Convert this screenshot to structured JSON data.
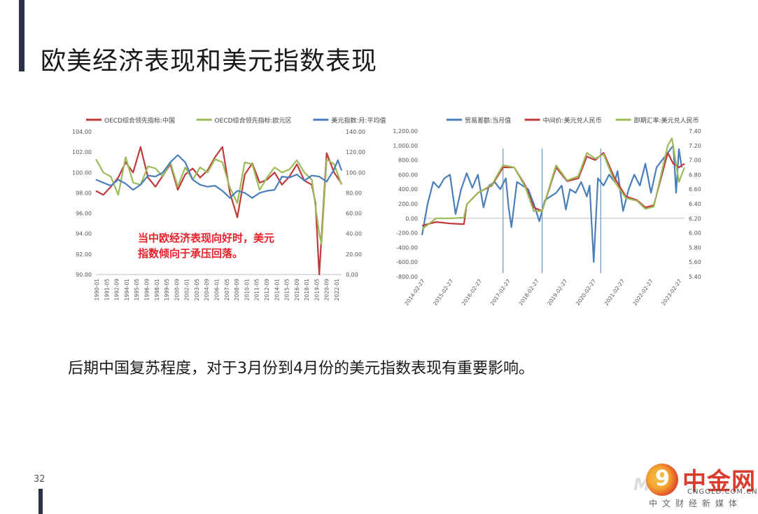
{
  "slide": {
    "title": "欧美经济表现和美元指数表现",
    "conclusion": "后期中国复苏程度，对于3月份到4月份的美元指数表现有重要影响。",
    "page_number": "32",
    "accent_color": "#2b3147"
  },
  "logo": {
    "name": "中金网",
    "url": "CNGOLD.COM.CN",
    "tagline": "中文财经新媒体",
    "faint_text": "Me",
    "circle_glyph": "9",
    "colors": {
      "red": "#d93b2c",
      "orange": "#f3a52f"
    }
  },
  "chart_data": [
    {
      "type": "line",
      "legend": [
        "OECD综合领先指标:中国",
        "OECD综合领先指标:欧元区",
        "美元指数:月:平均值"
      ],
      "legend_position": "top",
      "colors": [
        "#c0393b",
        "#9bbb59",
        "#4a7ebb"
      ],
      "y_left": {
        "ticks": [
          "104.00",
          "102.00",
          "100.00",
          "98.00",
          "96.00",
          "94.00",
          "92.00",
          "90.00"
        ],
        "range": [
          90,
          104
        ]
      },
      "y_right": {
        "ticks": [
          "140.00",
          "120.00",
          "100.00",
          "80.00",
          "60.00",
          "40.00",
          "20.00",
          "0.00"
        ],
        "range": [
          0,
          140
        ]
      },
      "x_ticks": [
        "1990-01",
        "1991-05",
        "1992-09",
        "1994-01",
        "1995-05",
        "1996-09",
        "1998-01",
        "1999-05",
        "2000-09",
        "2002-01",
        "2003-05",
        "2004-09",
        "2006-01",
        "2007-05",
        "2008-09",
        "2010-01",
        "2011-05",
        "2012-09",
        "2014-01",
        "2015-05",
        "2016-09",
        "2018-01",
        "2019-05",
        "2020-09",
        "2022-01"
      ],
      "annotation": [
        "当中欧经济表现向好时，美元",
        "指数倾向于承压回落。"
      ],
      "annotation_color": "#e8202a",
      "series": [
        {
          "name": "OECD综合领先指标:中国",
          "axis": "left",
          "x": [
            1990,
            1991,
            1992,
            1993,
            1994,
            1995,
            1996,
            1997,
            1998,
            1999,
            2000,
            2001,
            2002,
            2003,
            2004,
            2005,
            2006,
            2007,
            2008,
            2009,
            2010,
            2011,
            2012,
            2013,
            2014,
            2015,
            2016,
            2017,
            2018,
            2019,
            2019.5,
            2020,
            2021,
            2022,
            2023
          ],
          "y": [
            98.2,
            97.8,
            98.6,
            99.5,
            101.0,
            100.0,
            102.5,
            99.5,
            98.6,
            99.7,
            100.8,
            98.3,
            99.8,
            100.4,
            99.5,
            100.2,
            101.5,
            102.5,
            98.0,
            95.6,
            99.8,
            100.9,
            99.0,
            99.3,
            100.0,
            98.8,
            99.6,
            100.8,
            99.2,
            98.8,
            97.0,
            90.0,
            101.9,
            100.0,
            98.9
          ]
        },
        {
          "name": "OECD综合领先指标:欧元区",
          "axis": "left",
          "x": [
            1990,
            1991,
            1992,
            1993,
            1994,
            1995,
            1996,
            1997,
            1998,
            1999,
            2000,
            2001,
            2002,
            2003,
            2004,
            2005,
            2006,
            2007,
            2008,
            2009,
            2010,
            2011,
            2012,
            2013,
            2014,
            2015,
            2016,
            2017,
            2018,
            2019,
            2020,
            2020.3,
            2021,
            2022,
            2023
          ],
          "y": [
            101.3,
            100.0,
            99.6,
            97.8,
            101.5,
            99.0,
            98.8,
            100.6,
            100.4,
            99.6,
            101.0,
            98.6,
            100.5,
            99.3,
            100.5,
            100.0,
            101.3,
            101.0,
            98.5,
            97.0,
            101.0,
            100.8,
            98.3,
            99.5,
            100.5,
            100.0,
            100.3,
            101.2,
            100.0,
            99.3,
            94.0,
            93.0,
            101.3,
            100.8,
            98.8
          ]
        },
        {
          "name": "美元指数:月:平均值",
          "axis": "right",
          "x": [
            1990,
            1991,
            1992,
            1993,
            1994,
            1995,
            1996,
            1997,
            1998,
            1999,
            2000,
            2001,
            2002,
            2003,
            2004,
            2005,
            2006,
            2007,
            2008,
            2009,
            2010,
            2011,
            2012,
            2013,
            2014,
            2015,
            2016,
            2017,
            2018,
            2019,
            2020,
            2021,
            2022,
            2022.5,
            2023
          ],
          "y": [
            93,
            90,
            87,
            93,
            89,
            83,
            88,
            97,
            96,
            100,
            110,
            117,
            110,
            93,
            88,
            86,
            87,
            82,
            75,
            82,
            80,
            75,
            80,
            82,
            83,
            96,
            95,
            98,
            92,
            97,
            96,
            91,
            103,
            112,
            102
          ]
        }
      ]
    },
    {
      "type": "line",
      "legend": [
        "贸易差额:当月值",
        "中间价:美元兑人民币",
        "即期汇率:美元兑人民币"
      ],
      "legend_position": "top",
      "colors": [
        "#4a7ebb",
        "#c0393b",
        "#9bbb59"
      ],
      "y_left": {
        "ticks": [
          "1,200.00",
          "1,000.00",
          "800.00",
          "600.00",
          "400.00",
          "200.00",
          "0.00",
          "-200.00",
          "-400.00",
          "-600.00",
          "-800.00"
        ],
        "range": [
          -800,
          1200
        ]
      },
      "y_right": {
        "ticks": [
          "7.40",
          "7.20",
          "7.00",
          "6.80",
          "6.60",
          "6.40",
          "6.20",
          "6.00",
          "5.80",
          "5.60",
          "5.40"
        ],
        "range": [
          5.4,
          7.4
        ]
      },
      "x_ticks": [
        "2014-02-27",
        "2015-02-27",
        "2016-02-27",
        "2017-02-27",
        "2018-02-27",
        "2019-02-27",
        "2020-02-27",
        "2021-02-27",
        "2022-02-27",
        "2023-02-27"
      ],
      "series": [
        {
          "name": "贸易差额:当月值",
          "axis": "left",
          "x": [
            2014.0,
            2014.2,
            2014.4,
            2014.6,
            2014.8,
            2015.0,
            2015.2,
            2015.4,
            2015.6,
            2015.8,
            2016.0,
            2016.2,
            2016.4,
            2016.6,
            2016.8,
            2017.0,
            2017.1,
            2017.2,
            2017.4,
            2017.6,
            2017.8,
            2018.0,
            2018.2,
            2018.4,
            2018.6,
            2018.8,
            2019.0,
            2019.15,
            2019.3,
            2019.5,
            2019.7,
            2019.9,
            2020.0,
            2020.15,
            2020.3,
            2020.5,
            2020.7,
            2020.9,
            2021.0,
            2021.2,
            2021.4,
            2021.6,
            2021.8,
            2022.0,
            2022.2,
            2022.4,
            2022.6,
            2022.8,
            2023.0,
            2023.1,
            2023.2,
            2023.3
          ],
          "y": [
            -230,
            200,
            500,
            420,
            550,
            600,
            60,
            400,
            620,
            420,
            600,
            150,
            450,
            500,
            400,
            550,
            150,
            -120,
            500,
            450,
            400,
            200,
            -40,
            250,
            300,
            350,
            450,
            120,
            400,
            350,
            500,
            300,
            450,
            -600,
            550,
            450,
            600,
            500,
            650,
            100,
            400,
            600,
            450,
            750,
            350,
            700,
            800,
            900,
            1000,
            350,
            950,
            700
          ]
        },
        {
          "name": "中间价:美元兑人民币",
          "axis": "right",
          "x": [
            2014.0,
            2014.5,
            2015.0,
            2015.5,
            2015.6,
            2016.0,
            2016.5,
            2016.9,
            2017.3,
            2017.7,
            2018.0,
            2018.3,
            2018.8,
            2019.2,
            2019.6,
            2019.9,
            2020.2,
            2020.5,
            2020.9,
            2021.3,
            2021.7,
            2022.0,
            2022.3,
            2022.8,
            2023.0,
            2023.2,
            2023.4
          ],
          "y": [
            6.1,
            6.15,
            6.13,
            6.12,
            6.39,
            6.55,
            6.65,
            6.9,
            6.9,
            6.65,
            6.35,
            6.3,
            6.9,
            6.71,
            6.75,
            7.05,
            7.0,
            7.1,
            6.75,
            6.5,
            6.45,
            6.35,
            6.38,
            7.1,
            6.95,
            6.9,
            6.95
          ]
        },
        {
          "name": "即期汇率:美元兑人民币",
          "axis": "right",
          "x": [
            2014.0,
            2014.5,
            2015.0,
            2015.5,
            2015.6,
            2016.0,
            2016.5,
            2016.9,
            2017.3,
            2017.7,
            2018.0,
            2018.3,
            2018.8,
            2019.2,
            2019.6,
            2019.9,
            2020.2,
            2020.5,
            2020.9,
            2021.3,
            2021.7,
            2022.0,
            2022.3,
            2022.8,
            2022.95,
            2023.1,
            2023.2,
            2023.4
          ],
          "y": [
            6.05,
            6.2,
            6.2,
            6.21,
            6.39,
            6.55,
            6.66,
            6.93,
            6.9,
            6.63,
            6.3,
            6.3,
            6.93,
            6.72,
            6.78,
            7.1,
            7.02,
            7.08,
            6.7,
            6.48,
            6.44,
            6.33,
            6.36,
            7.2,
            7.3,
            6.95,
            6.7,
            6.9
          ]
        }
      ],
      "vertical_markers_x": [
        2016.9,
        2018.3,
        2020.4
      ]
    }
  ]
}
